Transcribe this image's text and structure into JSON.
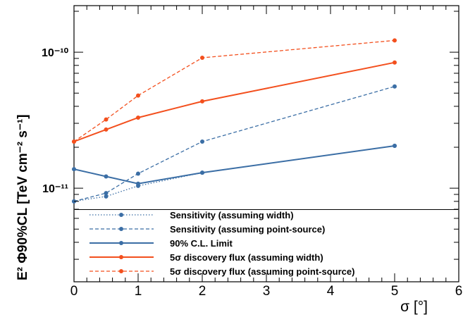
{
  "chart_data": {
    "type": "line",
    "xlabel": "σ [°]",
    "ylabel": "E² Φ90%CL [TeV cm⁻² s⁻¹]",
    "xlim": [
      0,
      6
    ],
    "ylim": [
      2.05e-12,
      2.2e-10
    ],
    "yscale": "log",
    "x_ticks": [
      "0",
      "1",
      "2",
      "3",
      "4",
      "5",
      "6"
    ],
    "y_ticks": [
      "10⁻¹¹",
      "10⁻¹⁰"
    ],
    "legend_position": "bottom",
    "series": [
      {
        "name": "Sensitivity (assuming width)",
        "style": "dotted",
        "color": "#3b6ea5",
        "x": [
          0,
          0.5,
          1,
          2,
          5
        ],
        "y": [
          8e-12,
          8.7e-12,
          1.04e-11,
          1.3e-11,
          2.05e-11
        ]
      },
      {
        "name": "Sensitivity (assuming point-source)",
        "style": "dashed",
        "color": "#3b6ea5",
        "x": [
          0,
          0.5,
          1,
          2,
          5
        ],
        "y": [
          8e-12,
          9.2e-12,
          1.28e-11,
          2.2e-11,
          5.6e-11
        ]
      },
      {
        "name": "90% C.L. Limit",
        "style": "solid",
        "color": "#3b6ea5",
        "x": [
          0,
          0.5,
          1,
          2,
          5
        ],
        "y": [
          1.38e-11,
          1.22e-11,
          1.08e-11,
          1.3e-11,
          2.05e-11
        ]
      },
      {
        "name": "5σ discovery flux (assuming width)",
        "style": "solid",
        "color": "#f34f1d",
        "x": [
          0,
          0.5,
          1,
          2,
          5
        ],
        "y": [
          2.2e-11,
          2.7e-11,
          3.3e-11,
          4.35e-11,
          8.4e-11
        ]
      },
      {
        "name": "5σ discovery flux (assuming point-source)",
        "style": "dashed",
        "color": "#f34f1d",
        "x": [
          0,
          0.5,
          1,
          2,
          5
        ],
        "y": [
          2.2e-11,
          3.2e-11,
          4.8e-11,
          9.1e-11,
          1.22e-10
        ]
      }
    ]
  }
}
